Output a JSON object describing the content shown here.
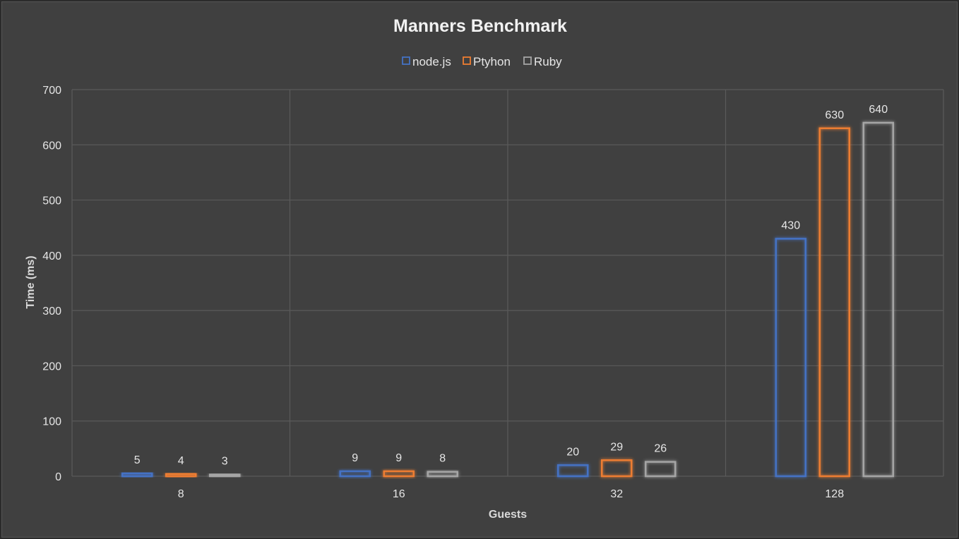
{
  "chart_data": {
    "type": "bar",
    "title": "Manners Benchmark",
    "xlabel": "Guests",
    "ylabel": "Time (ms)",
    "categories": [
      "8",
      "16",
      "32",
      "128"
    ],
    "series": [
      {
        "name": "node.js",
        "color": "#4472c4",
        "values": [
          5,
          9,
          20,
          430
        ]
      },
      {
        "name": "Ptyhon",
        "color": "#ed7d31",
        "values": [
          4,
          9,
          29,
          630
        ]
      },
      {
        "name": "Ruby",
        "color": "#a5a5a5",
        "values": [
          3,
          8,
          26,
          640
        ]
      }
    ],
    "ylim": [
      0,
      700
    ],
    "yticks": [
      0,
      100,
      200,
      300,
      400,
      500,
      600,
      700
    ],
    "grid": true,
    "legend_position": "top",
    "background": "#404040"
  }
}
